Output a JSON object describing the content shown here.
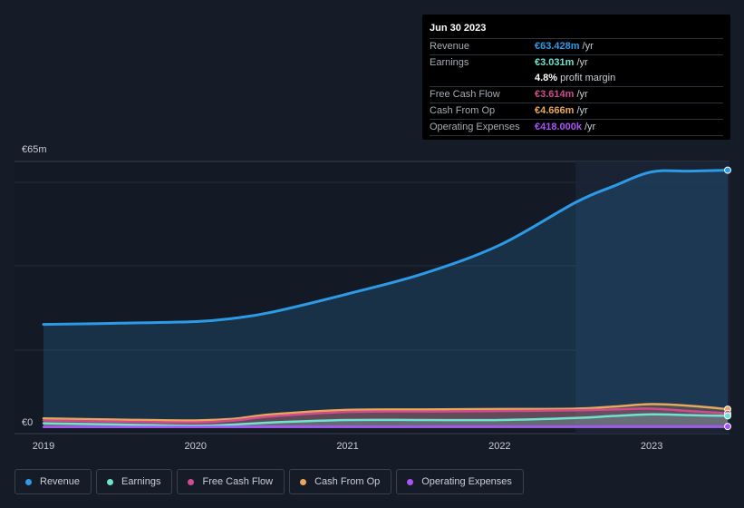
{
  "tooltip": {
    "date": "Jun 30 2023",
    "rows": [
      {
        "label": "Revenue",
        "value": "€63.428m",
        "unit": "/yr",
        "color": "#2d9ae6"
      },
      {
        "label": "Earnings",
        "value": "€3.031m",
        "unit": "/yr",
        "color": "#6fe3cf"
      },
      {
        "label": "",
        "value": "4.8%",
        "unit": "profit margin",
        "color": "#ffffff"
      },
      {
        "label": "Free Cash Flow",
        "value": "€3.614m",
        "unit": "/yr",
        "color": "#d14b8f"
      },
      {
        "label": "Cash From Op",
        "value": "€4.666m",
        "unit": "/yr",
        "color": "#e8a85a"
      },
      {
        "label": "Operating Expenses",
        "value": "€418.000k",
        "unit": "/yr",
        "color": "#a855f7"
      }
    ]
  },
  "chart_data": {
    "type": "area",
    "y_top_label": "€65m",
    "y_bottom_label": "€0",
    "ylim": [
      0,
      65
    ],
    "xlim": [
      2019.0,
      2023.5
    ],
    "x_tick_labels": [
      "2019",
      "2020",
      "2021",
      "2022",
      "2023"
    ],
    "x_ticks": [
      2019,
      2020,
      2021,
      2022,
      2023
    ],
    "grid": true,
    "highlight_from": 2022.5,
    "legend": [
      {
        "name": "Revenue",
        "color": "#2d9ae6"
      },
      {
        "name": "Earnings",
        "color": "#6fe3cf"
      },
      {
        "name": "Free Cash Flow",
        "color": "#d14b8f"
      },
      {
        "name": "Cash From Op",
        "color": "#e8a85a"
      },
      {
        "name": "Operating Expenses",
        "color": "#a855f7"
      }
    ],
    "series": [
      {
        "name": "Revenue",
        "color": "#2d9ae6",
        "x": [
          2019.0,
          2019.5,
          2020.0,
          2020.25,
          2020.5,
          2021.0,
          2021.5,
          2022.0,
          2022.5,
          2022.75,
          2023.0,
          2023.25,
          2023.5
        ],
        "y": [
          25.5,
          25.8,
          26.2,
          27.0,
          28.5,
          33.0,
          38.0,
          45.0,
          55.5,
          59.5,
          63.0,
          63.2,
          63.428
        ]
      },
      {
        "name": "Cash From Op",
        "color": "#e8a85a",
        "x": [
          2019.0,
          2019.5,
          2020.0,
          2020.25,
          2020.5,
          2021.0,
          2021.5,
          2022.0,
          2022.5,
          2022.75,
          2023.0,
          2023.25,
          2023.5
        ],
        "y": [
          2.4,
          2.1,
          1.9,
          2.3,
          3.4,
          4.5,
          4.6,
          4.7,
          4.8,
          5.3,
          5.9,
          5.5,
          4.666
        ]
      },
      {
        "name": "Free Cash Flow",
        "color": "#d14b8f",
        "x": [
          2019.0,
          2019.5,
          2020.0,
          2020.25,
          2020.5,
          2021.0,
          2021.5,
          2022.0,
          2022.5,
          2022.75,
          2023.0,
          2023.25,
          2023.5
        ],
        "y": [
          1.9,
          1.6,
          1.4,
          1.9,
          2.9,
          4.0,
          4.1,
          4.2,
          4.4,
          4.6,
          4.8,
          4.2,
          3.614
        ]
      },
      {
        "name": "Earnings",
        "color": "#6fe3cf",
        "x": [
          2019.0,
          2019.5,
          2020.0,
          2020.25,
          2020.5,
          2021.0,
          2021.5,
          2022.0,
          2022.5,
          2022.75,
          2023.0,
          2023.25,
          2023.5
        ],
        "y": [
          1.2,
          0.9,
          0.6,
          0.9,
          1.4,
          2.0,
          2.0,
          2.0,
          2.5,
          3.0,
          3.4,
          3.2,
          3.031
        ]
      },
      {
        "name": "Operating Expenses",
        "color": "#a855f7",
        "x": [
          2019.0,
          2019.5,
          2020.0,
          2020.5,
          2021.0,
          2021.5,
          2022.0,
          2022.5,
          2023.0,
          2023.5
        ],
        "y": [
          0.3,
          0.3,
          0.3,
          0.35,
          0.35,
          0.38,
          0.4,
          0.4,
          0.42,
          0.418
        ]
      }
    ]
  }
}
